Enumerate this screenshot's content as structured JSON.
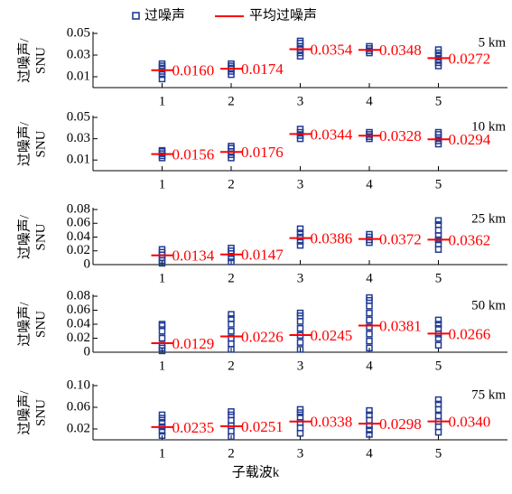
{
  "legend": {
    "points": {
      "name": "过噪声",
      "color": "#1f3a93"
    },
    "mean": {
      "name": "平均过噪声",
      "color": "#ff0000"
    }
  },
  "xlabel": "子载波k",
  "chart_data": [
    {
      "type": "scatter",
      "title": "5 km",
      "ylabel": [
        "过噪声/",
        "SNU"
      ],
      "x": [
        1,
        2,
        3,
        4,
        5
      ],
      "xlim": [
        0,
        6
      ],
      "xticks": [
        1,
        2,
        3,
        4,
        5
      ],
      "ylim": [
        0,
        0.05
      ],
      "yticks": [
        0.01,
        0.03,
        0.05
      ],
      "points": [
        [
          0.008,
          0.012,
          0.015,
          0.018,
          0.02,
          0.022
        ],
        [
          0.012,
          0.015,
          0.018,
          0.02,
          0.022
        ],
        [
          0.029,
          0.032,
          0.035,
          0.038,
          0.041,
          0.043
        ],
        [
          0.032,
          0.034,
          0.036,
          0.038
        ],
        [
          0.02,
          0.023,
          0.026,
          0.029,
          0.032,
          0.035
        ]
      ],
      "means": [
        0.016,
        0.0174,
        0.0354,
        0.0348,
        0.0272
      ],
      "value_labels": [
        "0.0160",
        "0.0174",
        "0.0354",
        "0.0348",
        "0.0272"
      ]
    },
    {
      "type": "scatter",
      "title": "10 km",
      "ylabel": [
        "过噪声/",
        "SNU"
      ],
      "x": [
        1,
        2,
        3,
        4,
        5
      ],
      "xlim": [
        0,
        6
      ],
      "xticks": [
        1,
        2,
        3,
        4,
        5
      ],
      "ylim": [
        0,
        0.05
      ],
      "yticks": [
        0.01,
        0.03,
        0.05
      ],
      "points": [
        [
          0.012,
          0.014,
          0.016,
          0.018,
          0.019
        ],
        [
          0.012,
          0.015,
          0.018,
          0.021,
          0.023
        ],
        [
          0.03,
          0.033,
          0.036,
          0.039
        ],
        [
          0.03,
          0.032,
          0.034,
          0.036
        ],
        [
          0.025,
          0.028,
          0.031,
          0.034,
          0.036
        ]
      ],
      "means": [
        0.0156,
        0.0176,
        0.0344,
        0.0328,
        0.0294
      ],
      "value_labels": [
        "0.0156",
        "0.0176",
        "0.0344",
        "0.0328",
        "0.0294"
      ]
    },
    {
      "type": "scatter",
      "title": "25 km",
      "ylabel": [
        "过噪声/",
        "SNU"
      ],
      "x": [
        1,
        2,
        3,
        4,
        5
      ],
      "xlim": [
        0,
        6
      ],
      "xticks": [
        1,
        2,
        3,
        4,
        5
      ],
      "ylim": [
        0,
        0.08
      ],
      "yticks": [
        0,
        0.02,
        0.04,
        0.06,
        0.08
      ],
      "points": [
        [
          0.002,
          0.006,
          0.01,
          0.014,
          0.018,
          0.022
        ],
        [
          0.004,
          0.01,
          0.016,
          0.02,
          0.024
        ],
        [
          0.028,
          0.034,
          0.04,
          0.046,
          0.052
        ],
        [
          0.032,
          0.036,
          0.04,
          0.044
        ],
        [
          0.022,
          0.03,
          0.036,
          0.042,
          0.05,
          0.058,
          0.064
        ]
      ],
      "means": [
        0.0134,
        0.0147,
        0.0386,
        0.0372,
        0.0362
      ],
      "value_labels": [
        "0.0134",
        "0.0147",
        "0.0386",
        "0.0372",
        "0.0362"
      ]
    },
    {
      "type": "scatter",
      "title": "50 km",
      "ylabel": [
        "过噪声/",
        "SNU"
      ],
      "x": [
        1,
        2,
        3,
        4,
        5
      ],
      "xlim": [
        0,
        6
      ],
      "xticks": [
        1,
        2,
        3,
        4,
        5
      ],
      "ylim": [
        0,
        0.08
      ],
      "yticks": [
        0,
        0.02,
        0.04,
        0.06,
        0.08
      ],
      "points": [
        [
          0.002,
          0.006,
          0.01,
          0.02,
          0.03,
          0.038,
          0.04
        ],
        [
          0.004,
          0.012,
          0.02,
          0.03,
          0.04,
          0.048,
          0.054
        ],
        [
          0.004,
          0.014,
          0.024,
          0.034,
          0.044,
          0.052,
          0.056
        ],
        [
          0.006,
          0.016,
          0.026,
          0.036,
          0.046,
          0.056,
          0.066,
          0.074,
          0.078
        ],
        [
          0.01,
          0.02,
          0.026,
          0.034,
          0.04,
          0.046
        ]
      ],
      "means": [
        0.0129,
        0.0226,
        0.0245,
        0.0381,
        0.0266
      ],
      "value_labels": [
        "0.0129",
        "0.0226",
        "0.0245",
        "0.0381",
        "0.0266"
      ]
    },
    {
      "type": "scatter",
      "title": "75 km",
      "ylabel": [
        "过噪声/",
        "SNU"
      ],
      "x": [
        1,
        2,
        3,
        4,
        5
      ],
      "xlim": [
        0,
        6
      ],
      "xticks": [
        1,
        2,
        3,
        4,
        5
      ],
      "ylim": [
        0,
        0.1
      ],
      "yticks": [
        0.02,
        0.06,
        {
          "value": 0.1,
          "label": "0.10"
        }
      ],
      "points": [
        [
          0.008,
          0.016,
          0.024,
          0.032,
          0.04,
          0.046
        ],
        [
          0.006,
          0.016,
          0.026,
          0.036,
          0.046,
          0.052
        ],
        [
          0.012,
          0.022,
          0.032,
          0.042,
          0.05,
          0.056
        ],
        [
          0.01,
          0.018,
          0.026,
          0.036,
          0.046,
          0.054
        ],
        [
          0.014,
          0.024,
          0.034,
          0.044,
          0.056,
          0.066,
          0.074
        ]
      ],
      "means": [
        0.0235,
        0.0251,
        0.0338,
        0.0298,
        0.034
      ],
      "value_labels": [
        "0.0235",
        "0.0251",
        "0.0338",
        "0.0298",
        "0.0340"
      ]
    }
  ]
}
